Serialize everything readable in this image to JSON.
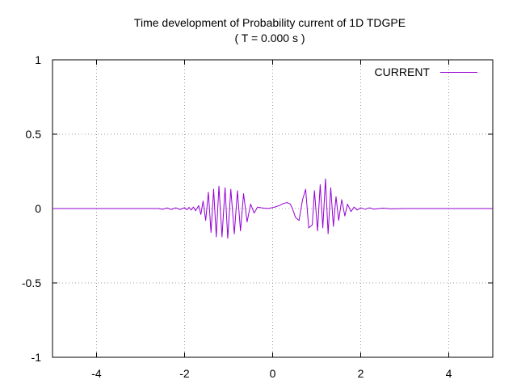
{
  "chart_data": {
    "type": "line",
    "title": "Time development of Probability current of 1D TDGPE",
    "subtitle": "( T = 0.000 s )",
    "xlabel": "",
    "ylabel": "",
    "xlim": [
      -5,
      5
    ],
    "ylim": [
      -1,
      1
    ],
    "grid": true,
    "legend_position": "top-right",
    "x_ticks": [
      -4,
      -2,
      0,
      2,
      4
    ],
    "x_tick_labels": [
      "-4",
      "-2",
      "0",
      "2",
      "4"
    ],
    "y_ticks": [
      -1,
      -0.5,
      0,
      0.5,
      1
    ],
    "y_tick_labels": [
      "-1",
      "-0.5",
      "0",
      "0.5",
      "1"
    ],
    "series": [
      {
        "name": "CURRENT",
        "color": "#9400D3",
        "points": [
          [
            -5.0,
            0
          ],
          [
            -3.0,
            0
          ],
          [
            -2.6,
            0
          ],
          [
            -2.5,
            -0.005
          ],
          [
            -2.4,
            0.004
          ],
          [
            -2.3,
            -0.006
          ],
          [
            -2.2,
            0.005
          ],
          [
            -2.1,
            -0.006
          ],
          [
            -2.0,
            0.006
          ],
          [
            -1.95,
            -0.008
          ],
          [
            -1.9,
            0.008
          ],
          [
            -1.85,
            -0.01
          ],
          [
            -1.8,
            0.01
          ],
          [
            -1.75,
            -0.015
          ],
          [
            -1.68,
            0.02
          ],
          [
            -1.63,
            -0.04
          ],
          [
            -1.58,
            0.05
          ],
          [
            -1.52,
            -0.08
          ],
          [
            -1.46,
            0.11
          ],
          [
            -1.4,
            -0.16
          ],
          [
            -1.34,
            0.13
          ],
          [
            -1.28,
            -0.19
          ],
          [
            -1.22,
            0.15
          ],
          [
            -1.15,
            -0.19
          ],
          [
            -1.08,
            0.14
          ],
          [
            -1.02,
            -0.2
          ],
          [
            -0.95,
            0.13
          ],
          [
            -0.87,
            -0.17
          ],
          [
            -0.8,
            0.12
          ],
          [
            -0.73,
            -0.15
          ],
          [
            -0.66,
            0.1
          ],
          [
            -0.58,
            -0.09
          ],
          [
            -0.5,
            0.03
          ],
          [
            -0.42,
            -0.03
          ],
          [
            -0.34,
            0.01
          ],
          [
            -0.25,
            0.005
          ],
          [
            -0.1,
            0.0
          ],
          [
            0.05,
            0.01
          ],
          [
            0.15,
            0.02
          ],
          [
            0.25,
            0.035
          ],
          [
            0.33,
            0.04
          ],
          [
            0.4,
            0.03
          ],
          [
            0.45,
            0.0
          ],
          [
            0.52,
            -0.06
          ],
          [
            0.6,
            -0.08
          ],
          [
            0.68,
            0.06
          ],
          [
            0.75,
            0.13
          ],
          [
            0.82,
            -0.13
          ],
          [
            0.9,
            -0.11
          ],
          [
            0.95,
            0.12
          ],
          [
            1.02,
            -0.15
          ],
          [
            1.08,
            0.16
          ],
          [
            1.14,
            -0.13
          ],
          [
            1.2,
            0.2
          ],
          [
            1.26,
            -0.17
          ],
          [
            1.32,
            0.14
          ],
          [
            1.38,
            -0.12
          ],
          [
            1.44,
            0.08
          ],
          [
            1.5,
            -0.08
          ],
          [
            1.57,
            0.06
          ],
          [
            1.64,
            -0.05
          ],
          [
            1.7,
            0.03
          ],
          [
            1.78,
            -0.02
          ],
          [
            1.85,
            0.01
          ],
          [
            1.92,
            -0.01
          ],
          [
            2.0,
            0.005
          ],
          [
            2.1,
            -0.005
          ],
          [
            2.2,
            0.005
          ],
          [
            2.3,
            -0.004
          ],
          [
            2.5,
            0.003
          ],
          [
            2.7,
            -0.002
          ],
          [
            3.0,
            0
          ],
          [
            5.0,
            0
          ]
        ]
      }
    ]
  }
}
